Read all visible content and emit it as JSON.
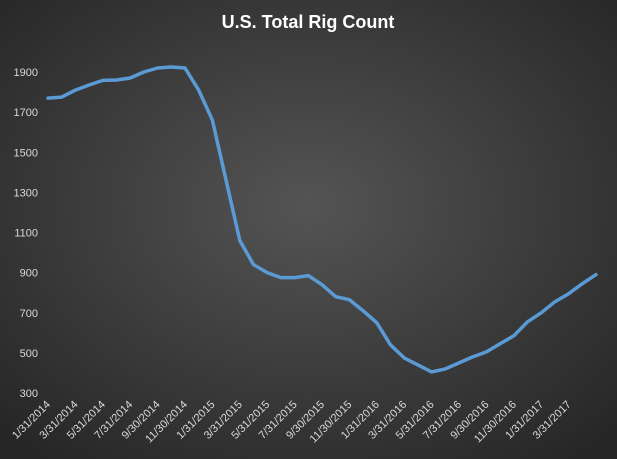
{
  "chart_data": {
    "type": "line",
    "title": "U.S. Total Rig Count",
    "categories": [
      "1/31/2014",
      null,
      "3/31/2014",
      null,
      "5/31/2014",
      null,
      "7/31/2014",
      null,
      "9/30/2014",
      null,
      "11/30/2014",
      null,
      "1/31/2015",
      null,
      "3/31/2015",
      null,
      "5/31/2015",
      null,
      "7/31/2015",
      null,
      "9/30/2015",
      null,
      "11/30/2015",
      null,
      "1/31/2016",
      null,
      "3/31/2016",
      null,
      "5/31/2016",
      null,
      "7/31/2016",
      null,
      "9/30/2016",
      null,
      "11/30/2016",
      null,
      "1/31/2017",
      null,
      "3/31/2017",
      null,
      null
    ],
    "series": [
      {
        "name": "U.S. Total Rig Count",
        "color": "#5b9bd5",
        "values": [
          1770,
          1775,
          1810,
          1835,
          1858,
          1860,
          1870,
          1900,
          1920,
          1925,
          1920,
          1810,
          1660,
          1360,
          1060,
          940,
          900,
          875,
          875,
          885,
          840,
          780,
          765,
          710,
          650,
          540,
          475,
          440,
          405,
          420,
          450,
          480,
          505,
          545,
          585,
          655,
          700,
          755,
          795,
          845,
          890
        ]
      }
    ],
    "ylim": [
      300,
      1900
    ],
    "yticks": [
      300,
      500,
      700,
      900,
      1100,
      1300,
      1500,
      1700,
      1900
    ],
    "grid": false
  }
}
